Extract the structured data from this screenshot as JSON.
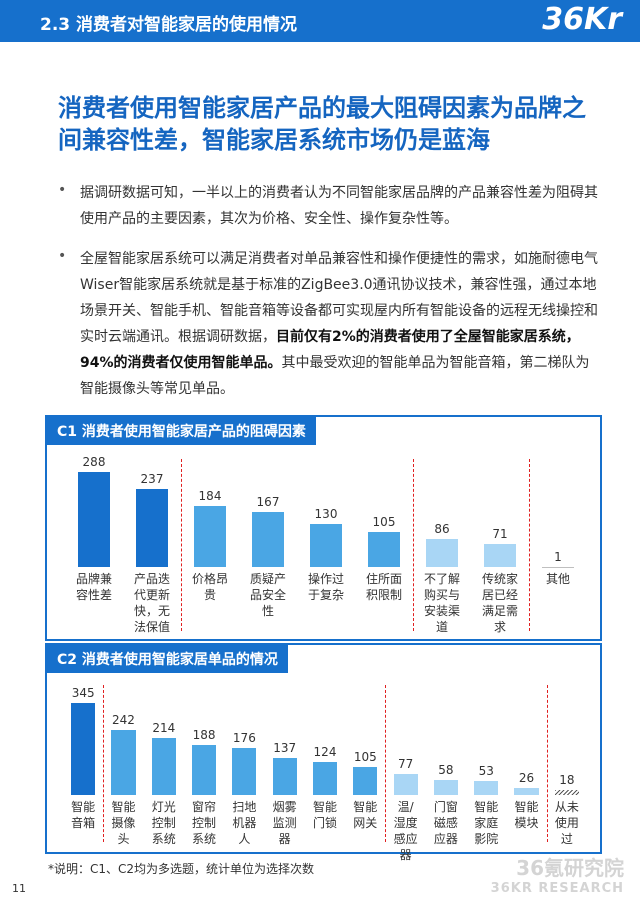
{
  "header": {
    "title": "2.3 消费者对智能家居的使用情况",
    "logo": "36Kr"
  },
  "headline": "消费者使用智能家居产品的最大阻碍因素为品牌之间兼容性差，智能家居系统市场仍是蓝海",
  "bullets": [
    [
      {
        "text": "据调研数据可知，一半以上的消费者认为不同智能家居品牌的产品兼容性差为阻碍其使用产品的主要因素，其次为价格、安全性、操作复杂性等。",
        "bold": false
      }
    ],
    [
      {
        "text": "全屋智能家居系统可以满足消费者对单品兼容性和操作便捷性的需求，如施耐德电气Wiser智能家居系统就是基于标准的ZigBee3.0通讯协议技术，兼容性强，通过本地场景开关、智能手机、智能音箱等设备都可实现屋内所有智能设备的远程无线操控和实时云端通讯。根据调研数据，",
        "bold": false
      },
      {
        "text": "目前仅有2%的消费者使用了全屋智能家居系统，94%的消费者仅使用智能单品。",
        "bold": true
      },
      {
        "text": "其中最受欢迎的智能单品为智能音箱，第二梯队为智能摄像头等常见单品。",
        "bold": false
      }
    ]
  ],
  "chart_data": [
    {
      "type": "bar",
      "title": "C1 消费者使用智能家居产品的阻碍因素",
      "categories": [
        "品牌兼容性差",
        "产品迭代更新快，无法保值",
        "价格昂贵",
        "质疑产品安全性",
        "操作过于复杂",
        "住所面积限制",
        "不了解购买与安装渠道",
        "传统家居已经满足需求",
        "其他"
      ],
      "values": [
        288,
        237,
        184,
        167,
        130,
        105,
        86,
        71,
        1
      ],
      "colors": [
        "#1670cc",
        "#1670cc",
        "#4aa6e4",
        "#4aa6e4",
        "#4aa6e4",
        "#4aa6e4",
        "#a9d6f5",
        "#a9d6f5",
        "#bfbfbf"
      ],
      "separators_after": [
        1,
        5,
        7
      ]
    },
    {
      "type": "bar",
      "title": "C2 消费者使用智能家居单品的情况",
      "categories": [
        "智能音箱",
        "智能摄像头",
        "灯光控制系统",
        "窗帘控制系统",
        "扫地机器人",
        "烟雾监测器",
        "智能门锁",
        "智能网关",
        "温/湿度感应器",
        "门窗磁感应器",
        "智能家庭影院",
        "智能模块",
        "从未使用过"
      ],
      "values": [
        345,
        242,
        214,
        188,
        176,
        137,
        124,
        105,
        77,
        58,
        53,
        26,
        18
      ],
      "colors": [
        "#1670cc",
        "#4aa6e4",
        "#4aa6e4",
        "#4aa6e4",
        "#4aa6e4",
        "#4aa6e4",
        "#4aa6e4",
        "#4aa6e4",
        "#a9d6f5",
        "#a9d6f5",
        "#a9d6f5",
        "#a9d6f5",
        "hatch"
      ],
      "separators_after": [
        0,
        7,
        11
      ]
    }
  ],
  "footnote": "*说明：C1、C2均为多选题，统计单位为选择次数",
  "page_number": "11",
  "watermark": [
    "36氪研究院",
    "36KR RESEARCH"
  ]
}
